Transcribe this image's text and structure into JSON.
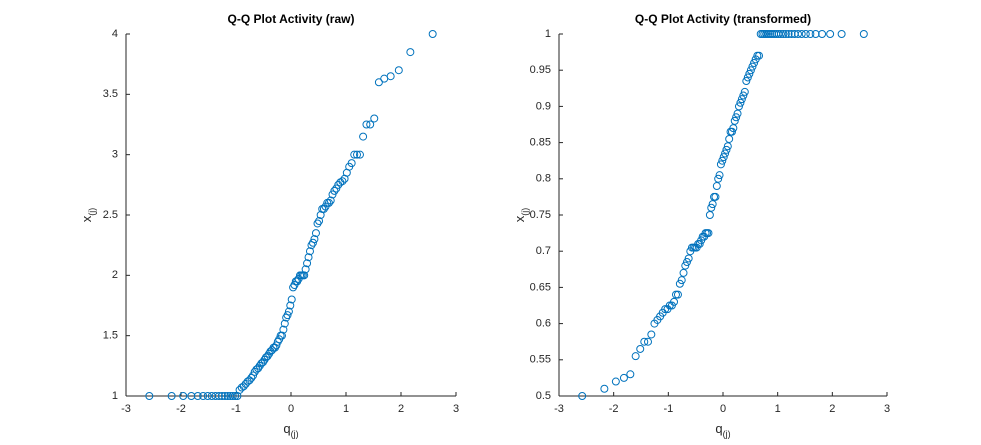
{
  "chart_data": [
    {
      "type": "scatter",
      "title": "Q-Q Plot Activity (raw)",
      "xlabel": "q",
      "xlabel_sub": "(j)",
      "ylabel": "x",
      "ylabel_sub": "(j)",
      "color": "#0072BD",
      "x": [
        -2.576,
        -2.17,
        -1.96,
        -1.812,
        -1.695,
        -1.598,
        -1.514,
        -1.44,
        -1.372,
        -1.311,
        -1.254,
        -1.2,
        -1.15,
        -1.103,
        -1.058,
        -1.015,
        -0.974,
        -0.935,
        -0.896,
        -0.86,
        -0.824,
        -0.789,
        -0.755,
        -0.722,
        -0.69,
        -0.659,
        -0.628,
        -0.598,
        -0.568,
        -0.539,
        -0.51,
        -0.482,
        -0.454,
        -0.426,
        -0.399,
        -0.372,
        -0.345,
        -0.319,
        -0.292,
        -0.266,
        -0.24,
        -0.215,
        -0.189,
        -0.164,
        -0.138,
        -0.113,
        -0.088,
        -0.063,
        -0.038,
        -0.013,
        0.013,
        0.038,
        0.063,
        0.088,
        0.113,
        0.138,
        0.164,
        0.189,
        0.215,
        0.24,
        0.266,
        0.292,
        0.319,
        0.345,
        0.372,
        0.399,
        0.426,
        0.454,
        0.482,
        0.51,
        0.539,
        0.568,
        0.598,
        0.628,
        0.659,
        0.69,
        0.722,
        0.755,
        0.789,
        0.824,
        0.86,
        0.896,
        0.935,
        0.974,
        1.015,
        1.058,
        1.103,
        1.15,
        1.2,
        1.254,
        1.311,
        1.372,
        1.44,
        1.514,
        1.598,
        1.695,
        1.812,
        1.96,
        2.17,
        2.576
      ],
      "values": [
        1,
        1,
        1,
        1,
        1,
        1,
        1,
        1,
        1,
        1,
        1,
        1,
        1,
        1,
        1,
        1,
        1,
        1.05,
        1.07,
        1.08,
        1.1,
        1.12,
        1.13,
        1.15,
        1.17,
        1.2,
        1.22,
        1.23,
        1.25,
        1.27,
        1.28,
        1.3,
        1.32,
        1.33,
        1.35,
        1.37,
        1.38,
        1.4,
        1.4,
        1.42,
        1.45,
        1.47,
        1.5,
        1.5,
        1.55,
        1.6,
        1.65,
        1.67,
        1.7,
        1.75,
        1.8,
        1.9,
        1.92,
        1.95,
        1.95,
        1.97,
        2,
        2,
        2,
        2,
        2.05,
        2.1,
        2.15,
        2.2,
        2.25,
        2.27,
        2.3,
        2.35,
        2.43,
        2.45,
        2.5,
        2.55,
        2.55,
        2.57,
        2.6,
        2.6,
        2.62,
        2.67,
        2.7,
        2.72,
        2.75,
        2.77,
        2.78,
        2.8,
        2.85,
        2.9,
        2.93,
        3,
        3,
        3,
        3.15,
        3.25,
        3.25,
        3.3,
        3.6,
        3.63,
        3.65,
        3.7,
        3.85,
        4
      ],
      "xlim": [
        -3,
        3
      ],
      "xticks": [
        -3,
        -2,
        -1,
        0,
        1,
        2,
        3
      ],
      "ylim": [
        1,
        4
      ],
      "yticks": [
        1,
        1.5,
        2,
        2.5,
        3,
        3.5,
        4
      ]
    },
    {
      "type": "scatter",
      "title": "Q-Q Plot Activity (transformed)",
      "xlabel": "q",
      "xlabel_sub": "(j)",
      "ylabel": "x",
      "ylabel_sub": "(j)",
      "color": "#0072BD",
      "x": [
        -2.576,
        -2.17,
        -1.96,
        -1.812,
        -1.695,
        -1.598,
        -1.514,
        -1.44,
        -1.372,
        -1.311,
        -1.254,
        -1.2,
        -1.15,
        -1.103,
        -1.058,
        -1.015,
        -0.974,
        -0.935,
        -0.896,
        -0.86,
        -0.824,
        -0.789,
        -0.755,
        -0.722,
        -0.69,
        -0.659,
        -0.628,
        -0.598,
        -0.568,
        -0.539,
        -0.51,
        -0.482,
        -0.454,
        -0.426,
        -0.399,
        -0.372,
        -0.345,
        -0.319,
        -0.292,
        -0.266,
        -0.24,
        -0.215,
        -0.189,
        -0.164,
        -0.138,
        -0.113,
        -0.088,
        -0.063,
        -0.038,
        -0.013,
        0.013,
        0.038,
        0.063,
        0.088,
        0.113,
        0.138,
        0.164,
        0.189,
        0.215,
        0.24,
        0.266,
        0.292,
        0.319,
        0.345,
        0.372,
        0.399,
        0.426,
        0.454,
        0.482,
        0.51,
        0.539,
        0.568,
        0.598,
        0.628,
        0.659,
        0.69,
        0.722,
        0.755,
        0.789,
        0.824,
        0.86,
        0.896,
        0.935,
        0.974,
        1.015,
        1.058,
        1.103,
        1.15,
        1.2,
        1.254,
        1.311,
        1.372,
        1.44,
        1.514,
        1.598,
        1.695,
        1.812,
        1.96,
        2.17,
        2.576
      ],
      "values": [
        0.5,
        0.51,
        0.52,
        0.525,
        0.53,
        0.555,
        0.565,
        0.575,
        0.575,
        0.585,
        0.6,
        0.605,
        0.61,
        0.615,
        0.62,
        0.62,
        0.625,
        0.625,
        0.63,
        0.64,
        0.64,
        0.655,
        0.66,
        0.67,
        0.68,
        0.685,
        0.69,
        0.7,
        0.705,
        0.705,
        0.705,
        0.705,
        0.71,
        0.71,
        0.715,
        0.72,
        0.72,
        0.725,
        0.725,
        0.725,
        0.75,
        0.76,
        0.765,
        0.775,
        0.775,
        0.79,
        0.8,
        0.805,
        0.82,
        0.825,
        0.83,
        0.835,
        0.84,
        0.845,
        0.855,
        0.865,
        0.865,
        0.87,
        0.88,
        0.885,
        0.89,
        0.9,
        0.905,
        0.91,
        0.915,
        0.92,
        0.935,
        0.94,
        0.945,
        0.95,
        0.955,
        0.96,
        0.965,
        0.97,
        0.97,
        1,
        1,
        1,
        1,
        1,
        1,
        1,
        1,
        1,
        1,
        1,
        1,
        1,
        1,
        1,
        1,
        1,
        1,
        1,
        1,
        1,
        1,
        1,
        1,
        1
      ],
      "xlim": [
        -3,
        3
      ],
      "xticks": [
        -3,
        -2,
        -1,
        0,
        1,
        2,
        3
      ],
      "ylim": [
        0.5,
        1
      ],
      "yticks": [
        0.5,
        0.55,
        0.6,
        0.65,
        0.7,
        0.75,
        0.8,
        0.85,
        0.9,
        0.95,
        1
      ]
    }
  ]
}
